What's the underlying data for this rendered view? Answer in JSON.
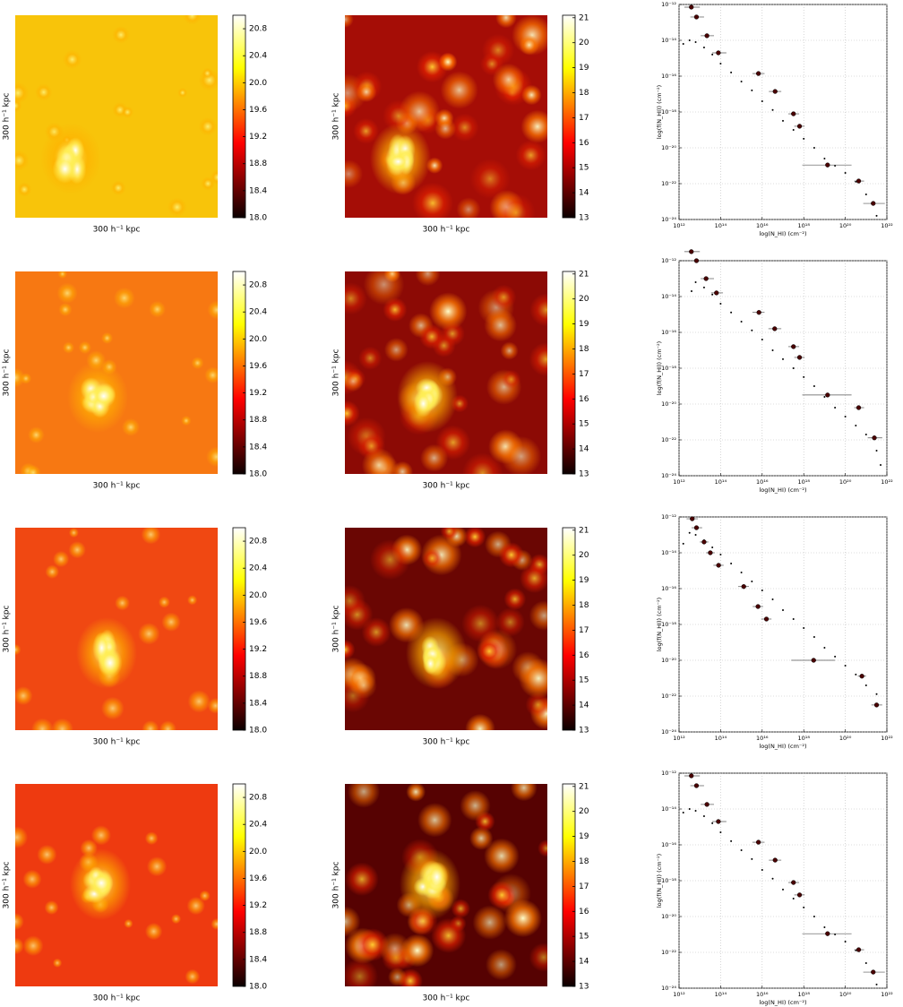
{
  "chart_data": [
    {
      "type": "heatmap",
      "colormap": "hot",
      "xlabel": "300 h⁻¹ kpc",
      "ylabel": "300 h⁻¹ kpc",
      "clim": [
        18,
        21
      ],
      "cticks": [
        {
          "value": 18,
          "label": "18.0"
        },
        {
          "value": 18.4,
          "label": "18.4"
        },
        {
          "value": 18.8,
          "label": "18.8"
        },
        {
          "value": 19.2,
          "label": "19.2"
        },
        {
          "value": 19.6,
          "label": "19.6"
        },
        {
          "value": 20,
          "label": "20.0"
        },
        {
          "value": 20.4,
          "label": "20.4"
        },
        {
          "value": 20.8,
          "label": "20.8"
        }
      ]
    },
    {
      "type": "heatmap",
      "colormap": "hot",
      "xlabel": "300 h⁻¹ kpc",
      "ylabel": "300 h⁻¹ kpc",
      "clim": [
        13,
        21.1
      ],
      "cticks": [
        13,
        14,
        15,
        16,
        17,
        18,
        19,
        20,
        21
      ]
    },
    {
      "type": "scatter",
      "xscale": "log",
      "yscale": "log",
      "grid": true,
      "xlabel": "log(N_HI) (cm⁻²)",
      "ylabel": "log(f(N_HI)) (cm⁻²)",
      "xlim": [
        1000000000000.0,
        1e+22
      ],
      "ylim": [
        1e-24,
        1e-12
      ],
      "xticks": [
        {
          "value": 1000000000000.0,
          "label": "10¹²"
        },
        {
          "value": 100000000000000.0,
          "label": "10¹⁴"
        },
        {
          "value": 1e+16,
          "label": "10¹⁶"
        },
        {
          "value": 1e+18,
          "label": "10¹⁸"
        },
        {
          "value": 1e+20,
          "label": "10²⁰"
        },
        {
          "value": 1e+22,
          "label": "10²²"
        }
      ],
      "yticks": [
        {
          "value": 1e-24,
          "label": "10⁻²⁴"
        },
        {
          "value": 1e-22,
          "label": "10⁻²²"
        },
        {
          "value": 1e-20,
          "label": "10⁻²⁰"
        },
        {
          "value": 1e-18,
          "label": "10⁻¹⁸"
        },
        {
          "value": 1e-16,
          "label": "10⁻¹⁶"
        },
        {
          "value": 1e-14,
          "label": "10⁻¹⁴"
        },
        {
          "value": 1e-12,
          "label": "10⁻¹²"
        }
      ],
      "series": [
        {
          "color": "#000000",
          "x": [
            1600000000000.0,
            3200000000000.0,
            6300000000000.0,
            16000000000000.0,
            40000000000000.0,
            100000000000000.0,
            320000000000000.0,
            1000000000000000.0,
            3200000000000000.0,
            1e+16,
            3.2e+16,
            1e+17,
            3.2e+17,
            1e+18,
            3.2e+18,
            1e+19,
            3.2e+19,
            1e+20,
            3.2e+20,
            1e+21,
            3.2e+21
          ],
          "values": [
            6.3e-15,
            1e-14,
            7.9e-15,
            4e-15,
            1.6e-15,
            5e-16,
            1.6e-16,
            5e-17,
            1.6e-17,
            4e-18,
            1.3e-18,
            3.2e-19,
            1e-19,
            3.2e-20,
            1e-20,
            2.5e-21,
            1e-21,
            4e-22,
            1.3e-22,
            2.5e-23,
            1.6e-24
          ]
        },
        {
          "color": "#4a0000",
          "x": [
            3900000000000.0,
            6900000000000.0,
            22000000000000.0,
            78000000000000.0,
            6600000000000000.0,
            4.2e+16,
            3.2e+17,
            6.3e+17,
            1.4e+19,
            4.4e+20,
            2.2e+21
          ],
          "values": [
            7.1e-13,
            2e-13,
            1.8e-14,
            2e-15,
            1.4e-16,
            1.4e-17,
            7.9e-19,
            1.6e-19,
            1.1e-21,
            1.4e-22,
            7.9e-24
          ],
          "x_low": [
            1800000000000.0,
            3500000000000.0,
            11000000000000.0,
            39000000000000.0,
            3400000000000000.0,
            2.1e+16,
            1.8e+17,
            3.5e+17,
            8.5e+17,
            2.7e+20,
            7.3e+20
          ],
          "x_high": [
            10000000000000.0,
            16000000000000.0,
            48000000000000.0,
            190000000000000.0,
            1.3e+16,
            8.3e+16,
            6e+17,
            1.1e+18,
            2e+20,
            8e+20,
            8e+21
          ]
        }
      ]
    },
    {
      "type": "heatmap",
      "colormap": "hot",
      "xlabel": "300 h⁻¹ kpc",
      "ylabel": "300 h⁻¹ kpc",
      "clim": [
        18,
        21
      ],
      "cticks": [
        {
          "value": 18,
          "label": "18.0"
        },
        {
          "value": 18.4,
          "label": "18.4"
        },
        {
          "value": 18.8,
          "label": "18.8"
        },
        {
          "value": 19.2,
          "label": "19.2"
        },
        {
          "value": 19.6,
          "label": "19.6"
        },
        {
          "value": 20,
          "label": "20.0"
        },
        {
          "value": 20.4,
          "label": "20.4"
        },
        {
          "value": 20.8,
          "label": "20.8"
        }
      ]
    },
    {
      "type": "heatmap",
      "colormap": "hot",
      "xlabel": "300 h⁻¹ kpc",
      "ylabel": "300 h⁻¹ kpc",
      "clim": [
        13,
        21.1
      ],
      "cticks": [
        13,
        14,
        15,
        16,
        17,
        18,
        19,
        20,
        21
      ]
    },
    {
      "type": "scatter",
      "xscale": "log",
      "yscale": "log",
      "grid": true,
      "xlabel": "log(N_HI) (cm⁻²)",
      "ylabel": "log(f(N_HI)) (cm⁻²)",
      "xlim": [
        1000000000000.0,
        1e+22
      ],
      "ylim": [
        1e-24,
        1e-12
      ],
      "xticks": [
        {
          "value": 1000000000000.0,
          "label": "10¹²"
        },
        {
          "value": 100000000000000.0,
          "label": "10¹⁴"
        },
        {
          "value": 1e+16,
          "label": "10¹⁶"
        },
        {
          "value": 1e+18,
          "label": "10¹⁸"
        },
        {
          "value": 1e+20,
          "label": "10²⁰"
        },
        {
          "value": 1e+22,
          "label": "10²²"
        }
      ],
      "yticks": [
        {
          "value": 1e-24,
          "label": "10⁻²⁴"
        },
        {
          "value": 1e-22,
          "label": "10⁻²²"
        },
        {
          "value": 1e-20,
          "label": "10⁻²⁰"
        },
        {
          "value": 1e-18,
          "label": "10⁻¹⁸"
        },
        {
          "value": 1e-16,
          "label": "10⁻¹⁶"
        },
        {
          "value": 1e-14,
          "label": "10⁻¹⁴"
        },
        {
          "value": 1e-12,
          "label": "10⁻¹²"
        }
      ],
      "series": [
        {
          "color": "#000000",
          "x": [
            4000000000000.0,
            6300000000000.0,
            16000000000000.0,
            40000000000000.0,
            100000000000000.0,
            320000000000000.0,
            1000000000000000.0,
            3200000000000000.0,
            1e+16,
            3.2e+16,
            1e+17,
            3.2e+17,
            1e+18,
            3.2e+18,
            1e+19,
            3.2e+19,
            1e+20,
            3.2e+20,
            1e+21,
            3.2e+21,
            5e+21
          ],
          "values": [
            2e-14,
            6.3e-14,
            3.2e-14,
            1.3e-14,
            4e-15,
            1.3e-15,
            4e-16,
            1.3e-16,
            4e-17,
            1e-17,
            3.2e-18,
            1e-18,
            3.2e-19,
            1e-19,
            2.5e-20,
            6.3e-21,
            2e-21,
            6.3e-22,
            2e-22,
            2.5e-23,
            4e-24
          ]
        },
        {
          "color": "#4a0000",
          "x": [
            3900000000000.0,
            6900000000000.0,
            20000000000000.0,
            63000000000000.0,
            7000000000000000.0,
            4e+16,
            3.2e+17,
            6.3e+17,
            1.4e+19,
            4.4e+20,
            2.5e+21
          ],
          "values": [
            3.2e-12,
            1e-12,
            1e-13,
            1.6e-14,
            1.3e-15,
            1.6e-16,
            1.6e-17,
            4e-18,
            3.2e-20,
            6.3e-21,
            1.3e-22
          ],
          "x_low": [
            1800000000000.0,
            3500000000000.0,
            11000000000000.0,
            35000000000000.0,
            3400000000000000.0,
            2e+16,
            1.8e+17,
            3.5e+17,
            8.5e+17,
            2.7e+20,
            1.2e+21
          ],
          "x_high": [
            10000000000000.0,
            16000000000000.0,
            48000000000000.0,
            130000000000000.0,
            1.3e+16,
            8.3e+16,
            6e+17,
            1.1e+18,
            2e+20,
            8e+20,
            6e+21
          ]
        }
      ]
    },
    {
      "type": "heatmap",
      "colormap": "hot",
      "xlabel": "300 h⁻¹ kpc",
      "ylabel": "300 h⁻¹ kpc",
      "clim": [
        18,
        21
      ],
      "cticks": [
        {
          "value": 18,
          "label": "18.0"
        },
        {
          "value": 18.4,
          "label": "18.4"
        },
        {
          "value": 18.8,
          "label": "18.8"
        },
        {
          "value": 19.2,
          "label": "19.2"
        },
        {
          "value": 19.6,
          "label": "19.6"
        },
        {
          "value": 20,
          "label": "20.0"
        },
        {
          "value": 20.4,
          "label": "20.4"
        },
        {
          "value": 20.8,
          "label": "20.8"
        }
      ]
    },
    {
      "type": "heatmap",
      "colormap": "hot",
      "xlabel": "300 h⁻¹ kpc",
      "ylabel": "300 h⁻¹ kpc",
      "clim": [
        13,
        21.1
      ],
      "cticks": [
        13,
        14,
        15,
        16,
        17,
        18,
        19,
        20,
        21
      ]
    },
    {
      "type": "scatter",
      "xscale": "log",
      "yscale": "log",
      "grid": true,
      "xlabel": "log(N_HI) (cm⁻²)",
      "ylabel": "log(f(N_HI)) (cm⁻²)",
      "xlim": [
        1000000000000.0,
        1e+22
      ],
      "ylim": [
        1e-24,
        1e-12
      ],
      "xticks": [
        {
          "value": 1000000000000.0,
          "label": "10¹²"
        },
        {
          "value": 100000000000000.0,
          "label": "10¹⁴"
        },
        {
          "value": 1e+16,
          "label": "10¹⁶"
        },
        {
          "value": 1e+18,
          "label": "10¹⁸"
        },
        {
          "value": 1e+20,
          "label": "10²⁰"
        },
        {
          "value": 1e+22,
          "label": "10²²"
        }
      ],
      "yticks": [
        {
          "value": 1e-24,
          "label": "10⁻²⁴"
        },
        {
          "value": 1e-22,
          "label": "10⁻²²"
        },
        {
          "value": 1e-20,
          "label": "10⁻²⁰"
        },
        {
          "value": 1e-18,
          "label": "10⁻¹⁸"
        },
        {
          "value": 1e-16,
          "label": "10⁻¹⁶"
        },
        {
          "value": 1e-14,
          "label": "10⁻¹⁴"
        },
        {
          "value": 1e-12,
          "label": "10⁻¹²"
        }
      ],
      "series": [
        {
          "color": "#000000",
          "x": [
            1600000000000.0,
            3200000000000.0,
            6300000000000.0,
            16000000000000.0,
            40000000000000.0,
            100000000000000.0,
            320000000000000.0,
            1000000000000000.0,
            3200000000000000.0,
            1e+16,
            3.2e+16,
            1e+17,
            3.2e+17,
            1e+18,
            3.2e+18,
            1e+19,
            3.2e+19,
            1e+20,
            3.2e+20,
            1e+21,
            3.2e+21
          ],
          "values": [
            3.2e-14,
            1.3e-13,
            1e-13,
            5e-14,
            2e-14,
            7.9e-15,
            2.5e-15,
            7.9e-16,
            2.5e-16,
            7.9e-17,
            2.5e-17,
            6.3e-18,
            2e-18,
            6.3e-19,
            2e-19,
            5e-20,
            1.6e-20,
            5e-21,
            1.6e-21,
            4e-22,
            1.3e-22
          ]
        },
        {
          "color": "#4a0000",
          "x": [
            4300000000000.0,
            6900000000000.0,
            16000000000000.0,
            32000000000000.0,
            80000000000000.0,
            1300000000000000.0,
            6300000000000000.0,
            1.6e+16,
            3e+18,
            6.3e+20,
            3.2e+21
          ],
          "values": [
            7.9e-13,
            2.5e-13,
            4e-14,
            1e-14,
            2e-15,
            1.3e-16,
            1e-17,
            2e-18,
            1e-20,
            1.3e-21,
            3.2e-23
          ],
          "x_low": [
            2300000000000.0,
            4000000000000.0,
            10000000000000.0,
            20000000000000.0,
            45000000000000.0,
            700000000000000.0,
            3500000000000000.0,
            9000000000000000.0,
            2.5e+17,
            4e+20,
            1.8e+21
          ],
          "x_high": [
            8000000000000.0,
            13000000000000.0,
            26000000000000.0,
            52000000000000.0,
            140000000000000.0,
            2300000000000000.0,
            1.1e+16,
            2.8e+16,
            3.2e+19,
            1e+21,
            6e+21
          ]
        }
      ]
    },
    {
      "type": "heatmap",
      "colormap": "hot",
      "xlabel": "300 h⁻¹ kpc",
      "ylabel": "300 h⁻¹ kpc",
      "clim": [
        18,
        21
      ],
      "cticks": [
        {
          "value": 18,
          "label": "18.0"
        },
        {
          "value": 18.4,
          "label": "18.4"
        },
        {
          "value": 18.8,
          "label": "18.8"
        },
        {
          "value": 19.2,
          "label": "19.2"
        },
        {
          "value": 19.6,
          "label": "19.6"
        },
        {
          "value": 20,
          "label": "20.0"
        },
        {
          "value": 20.4,
          "label": "20.4"
        },
        {
          "value": 20.8,
          "label": "20.8"
        }
      ]
    },
    {
      "type": "heatmap",
      "colormap": "hot",
      "xlabel": "300 h⁻¹ kpc",
      "ylabel": "300 h⁻¹ kpc",
      "clim": [
        13,
        21.1
      ],
      "cticks": [
        13,
        14,
        15,
        16,
        17,
        18,
        19,
        20,
        21
      ]
    },
    {
      "type": "scatter",
      "xscale": "log",
      "yscale": "log",
      "grid": true,
      "xlabel": "log(N_HI) (cm⁻²)",
      "ylabel": "log(f(N_HI)) (cm⁻²)",
      "xlim": [
        1000000000000.0,
        1e+22
      ],
      "ylim": [
        1e-24,
        1e-12
      ],
      "xticks": [
        {
          "value": 1000000000000.0,
          "label": "10¹²"
        },
        {
          "value": 100000000000000.0,
          "label": "10¹⁴"
        },
        {
          "value": 1e+16,
          "label": "10¹⁶"
        },
        {
          "value": 1e+18,
          "label": "10¹⁸"
        },
        {
          "value": 1e+20,
          "label": "10²⁰"
        },
        {
          "value": 1e+22,
          "label": "10²²"
        }
      ],
      "yticks": [
        {
          "value": 1e-24,
          "label": "10⁻²⁴"
        },
        {
          "value": 1e-22,
          "label": "10⁻²²"
        },
        {
          "value": 1e-20,
          "label": "10⁻²⁰"
        },
        {
          "value": 1e-18,
          "label": "10⁻¹⁸"
        },
        {
          "value": 1e-16,
          "label": "10⁻¹⁶"
        },
        {
          "value": 1e-14,
          "label": "10⁻¹⁴"
        },
        {
          "value": 1e-12,
          "label": "10⁻¹²"
        }
      ],
      "series": [
        {
          "color": "#000000",
          "x": [
            1600000000000.0,
            3200000000000.0,
            6300000000000.0,
            16000000000000.0,
            40000000000000.0,
            100000000000000.0,
            320000000000000.0,
            1000000000000000.0,
            3200000000000000.0,
            1e+16,
            3.2e+16,
            1e+17,
            3.2e+17,
            1e+18,
            3.2e+18,
            1e+19,
            3.2e+19,
            1e+20,
            3.2e+20,
            1e+21,
            3.2e+21
          ],
          "values": [
            6.3e-15,
            1e-14,
            7.9e-15,
            4e-15,
            1.6e-15,
            5e-16,
            1.6e-16,
            5e-17,
            1.6e-17,
            4e-18,
            1.3e-18,
            3.2e-19,
            1e-19,
            3.2e-20,
            1e-20,
            2.5e-21,
            1e-21,
            4e-22,
            1.3e-22,
            2.5e-23,
            1.6e-24
          ]
        },
        {
          "color": "#4a0000",
          "x": [
            3900000000000.0,
            6900000000000.0,
            22000000000000.0,
            78000000000000.0,
            6600000000000000.0,
            4.2e+16,
            3.2e+17,
            6.3e+17,
            1.4e+19,
            4.4e+20,
            2.2e+21
          ],
          "values": [
            7.1e-13,
            2e-13,
            1.8e-14,
            2e-15,
            1.4e-16,
            1.4e-17,
            7.9e-19,
            1.6e-19,
            1.1e-21,
            1.4e-22,
            7.9e-24
          ],
          "x_low": [
            1800000000000.0,
            3500000000000.0,
            11000000000000.0,
            39000000000000.0,
            3400000000000000.0,
            2.1e+16,
            1.8e+17,
            3.5e+17,
            8.5e+17,
            2.7e+20,
            7.3e+20
          ],
          "x_high": [
            10000000000000.0,
            16000000000000.0,
            48000000000000.0,
            190000000000000.0,
            1.3e+16,
            8.3e+16,
            6e+17,
            1.1e+18,
            2e+20,
            8e+20,
            8e+21
          ]
        }
      ]
    }
  ]
}
